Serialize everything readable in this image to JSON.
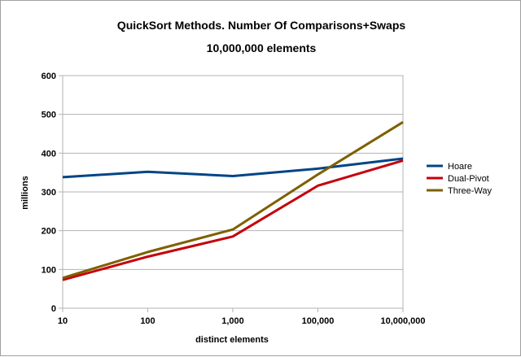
{
  "chart_data": {
    "type": "line",
    "title": "QuickSort Methods. Number Of Comparisons+Swaps",
    "subtitle": "10,000,000 elements",
    "xlabel": "distinct elements",
    "ylabel": "millions",
    "categories": [
      "10",
      "100",
      "1,000",
      "100,000",
      "10,000,000"
    ],
    "ylim": [
      0,
      600
    ],
    "yticks": [
      "0",
      "100",
      "200",
      "300",
      "400",
      "500",
      "600"
    ],
    "grid": true,
    "legend_position": "right",
    "series": [
      {
        "name": "Hoare",
        "color": "#004586",
        "values": [
          338,
          352,
          341,
          360,
          386
        ]
      },
      {
        "name": "Dual-Pivot",
        "color": "#c5000b",
        "values": [
          73,
          133,
          185,
          316,
          381
        ]
      },
      {
        "name": "Three-Way",
        "color": "#7e6000",
        "values": [
          78,
          145,
          203,
          345,
          480
        ]
      }
    ]
  }
}
